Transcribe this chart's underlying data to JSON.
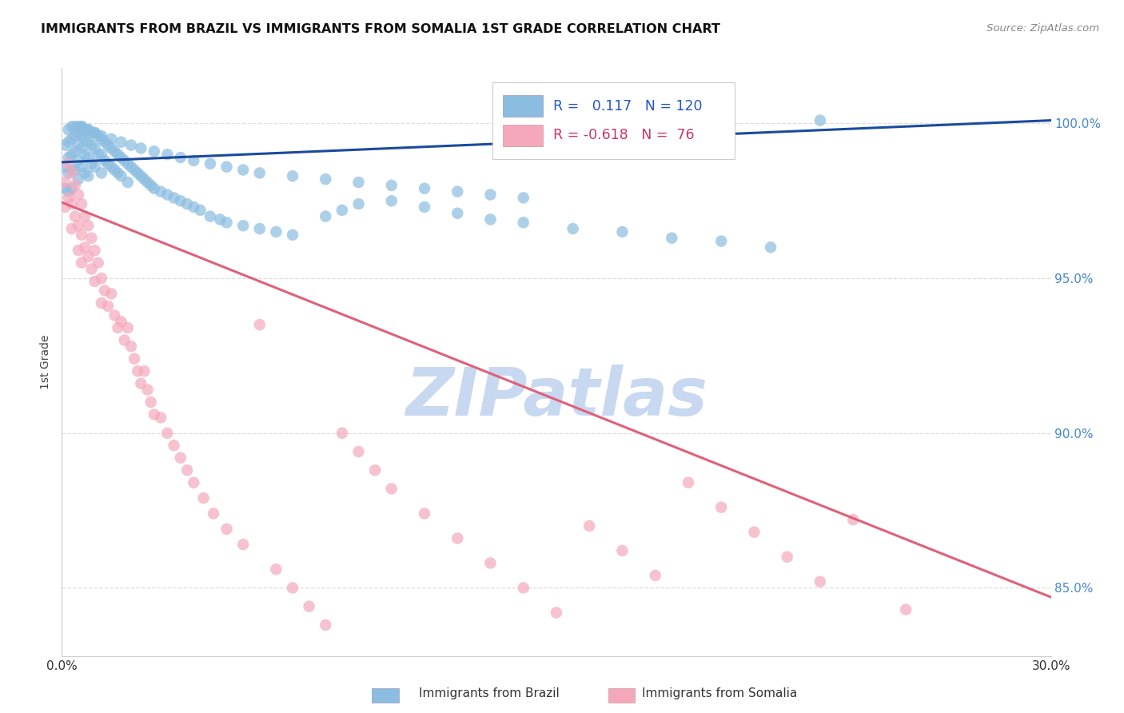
{
  "title": "IMMIGRANTS FROM BRAZIL VS IMMIGRANTS FROM SOMALIA 1ST GRADE CORRELATION CHART",
  "source": "Source: ZipAtlas.com",
  "ylabel": "1st Grade",
  "xlim": [
    0.0,
    0.3
  ],
  "ylim": [
    0.828,
    1.018
  ],
  "xtick_positions": [
    0.0,
    0.05,
    0.1,
    0.15,
    0.2,
    0.25,
    0.3
  ],
  "xtick_labels": [
    "0.0%",
    "",
    "",
    "",
    "",
    "",
    "30.0%"
  ],
  "ytick_positions": [
    0.85,
    0.9,
    0.95,
    1.0
  ],
  "ytick_labels": [
    "85.0%",
    "90.0%",
    "95.0%",
    "100.0%"
  ],
  "brazil_color": "#8bbde0",
  "somalia_color": "#f5a8bc",
  "brazil_line_color": "#1a4a9e",
  "somalia_line_color": "#e0607a",
  "brazil_R": 0.117,
  "brazil_N": 120,
  "somalia_R": -0.618,
  "somalia_N": 76,
  "brazil_line_y0": 0.9875,
  "brazil_line_y1": 1.001,
  "somalia_line_y0": 0.9745,
  "somalia_line_y1": 0.847,
  "watermark": "ZIPatlas",
  "watermark_color": "#c8d8f0",
  "background_color": "#ffffff",
  "grid_color": "#dddddd",
  "right_tick_color": "#4488cc",
  "title_color": "#111111",
  "source_color": "#888888",
  "legend_brazil_color": "#2255cc",
  "legend_somalia_color": "#cc3366",
  "bottom_legend_labels": [
    "Immigrants from Brazil",
    "Immigrants from Somalia"
  ],
  "brazil_points_x": [
    0.001,
    0.001,
    0.001,
    0.002,
    0.002,
    0.002,
    0.002,
    0.002,
    0.003,
    0.003,
    0.003,
    0.003,
    0.003,
    0.004,
    0.004,
    0.004,
    0.004,
    0.005,
    0.005,
    0.005,
    0.005,
    0.005,
    0.006,
    0.006,
    0.006,
    0.006,
    0.007,
    0.007,
    0.007,
    0.007,
    0.008,
    0.008,
    0.008,
    0.008,
    0.009,
    0.009,
    0.009,
    0.01,
    0.01,
    0.01,
    0.011,
    0.011,
    0.012,
    0.012,
    0.012,
    0.013,
    0.013,
    0.014,
    0.014,
    0.015,
    0.015,
    0.016,
    0.016,
    0.017,
    0.017,
    0.018,
    0.018,
    0.019,
    0.02,
    0.02,
    0.021,
    0.022,
    0.023,
    0.024,
    0.025,
    0.026,
    0.027,
    0.028,
    0.03,
    0.032,
    0.034,
    0.036,
    0.038,
    0.04,
    0.042,
    0.045,
    0.048,
    0.05,
    0.055,
    0.06,
    0.065,
    0.07,
    0.08,
    0.085,
    0.09,
    0.1,
    0.11,
    0.12,
    0.13,
    0.14,
    0.155,
    0.17,
    0.185,
    0.2,
    0.215,
    0.23,
    0.006,
    0.008,
    0.01,
    0.012,
    0.015,
    0.018,
    0.021,
    0.024,
    0.028,
    0.032,
    0.036,
    0.04,
    0.045,
    0.05,
    0.055,
    0.06,
    0.07,
    0.08,
    0.09,
    0.1,
    0.11,
    0.12,
    0.13,
    0.14
  ],
  "brazil_points_y": [
    0.993,
    0.986,
    0.979,
    0.998,
    0.994,
    0.989,
    0.984,
    0.978,
    0.999,
    0.995,
    0.99,
    0.985,
    0.979,
    0.999,
    0.996,
    0.991,
    0.985,
    0.999,
    0.997,
    0.993,
    0.988,
    0.982,
    0.999,
    0.996,
    0.992,
    0.986,
    0.998,
    0.995,
    0.99,
    0.984,
    0.998,
    0.994,
    0.989,
    0.983,
    0.997,
    0.993,
    0.987,
    0.997,
    0.992,
    0.986,
    0.996,
    0.99,
    0.995,
    0.99,
    0.984,
    0.994,
    0.988,
    0.993,
    0.987,
    0.992,
    0.986,
    0.991,
    0.985,
    0.99,
    0.984,
    0.989,
    0.983,
    0.988,
    0.987,
    0.981,
    0.986,
    0.985,
    0.984,
    0.983,
    0.982,
    0.981,
    0.98,
    0.979,
    0.978,
    0.977,
    0.976,
    0.975,
    0.974,
    0.973,
    0.972,
    0.97,
    0.969,
    0.968,
    0.967,
    0.966,
    0.965,
    0.964,
    0.97,
    0.972,
    0.974,
    0.975,
    0.973,
    0.971,
    0.969,
    0.968,
    0.966,
    0.965,
    0.963,
    0.962,
    0.96,
    1.001,
    0.999,
    0.998,
    0.997,
    0.996,
    0.995,
    0.994,
    0.993,
    0.992,
    0.991,
    0.99,
    0.989,
    0.988,
    0.987,
    0.986,
    0.985,
    0.984,
    0.983,
    0.982,
    0.981,
    0.98,
    0.979,
    0.978,
    0.977,
    0.976
  ],
  "somalia_points_x": [
    0.001,
    0.001,
    0.002,
    0.002,
    0.003,
    0.003,
    0.003,
    0.004,
    0.004,
    0.005,
    0.005,
    0.005,
    0.006,
    0.006,
    0.006,
    0.007,
    0.007,
    0.008,
    0.008,
    0.009,
    0.009,
    0.01,
    0.01,
    0.011,
    0.012,
    0.012,
    0.013,
    0.014,
    0.015,
    0.016,
    0.017,
    0.018,
    0.019,
    0.02,
    0.021,
    0.022,
    0.023,
    0.024,
    0.025,
    0.026,
    0.027,
    0.028,
    0.03,
    0.032,
    0.034,
    0.036,
    0.038,
    0.04,
    0.043,
    0.046,
    0.05,
    0.055,
    0.06,
    0.065,
    0.07,
    0.075,
    0.08,
    0.085,
    0.09,
    0.095,
    0.1,
    0.11,
    0.12,
    0.13,
    0.14,
    0.15,
    0.16,
    0.17,
    0.18,
    0.19,
    0.2,
    0.21,
    0.22,
    0.23,
    0.24,
    0.256
  ],
  "somalia_points_y": [
    0.981,
    0.973,
    0.987,
    0.976,
    0.984,
    0.974,
    0.966,
    0.98,
    0.97,
    0.977,
    0.967,
    0.959,
    0.974,
    0.964,
    0.955,
    0.97,
    0.96,
    0.967,
    0.957,
    0.963,
    0.953,
    0.959,
    0.949,
    0.955,
    0.95,
    0.942,
    0.946,
    0.941,
    0.945,
    0.938,
    0.934,
    0.936,
    0.93,
    0.934,
    0.928,
    0.924,
    0.92,
    0.916,
    0.92,
    0.914,
    0.91,
    0.906,
    0.905,
    0.9,
    0.896,
    0.892,
    0.888,
    0.884,
    0.879,
    0.874,
    0.869,
    0.864,
    0.935,
    0.856,
    0.85,
    0.844,
    0.838,
    0.9,
    0.894,
    0.888,
    0.882,
    0.874,
    0.866,
    0.858,
    0.85,
    0.842,
    0.87,
    0.862,
    0.854,
    0.884,
    0.876,
    0.868,
    0.86,
    0.852,
    0.872,
    0.843
  ]
}
